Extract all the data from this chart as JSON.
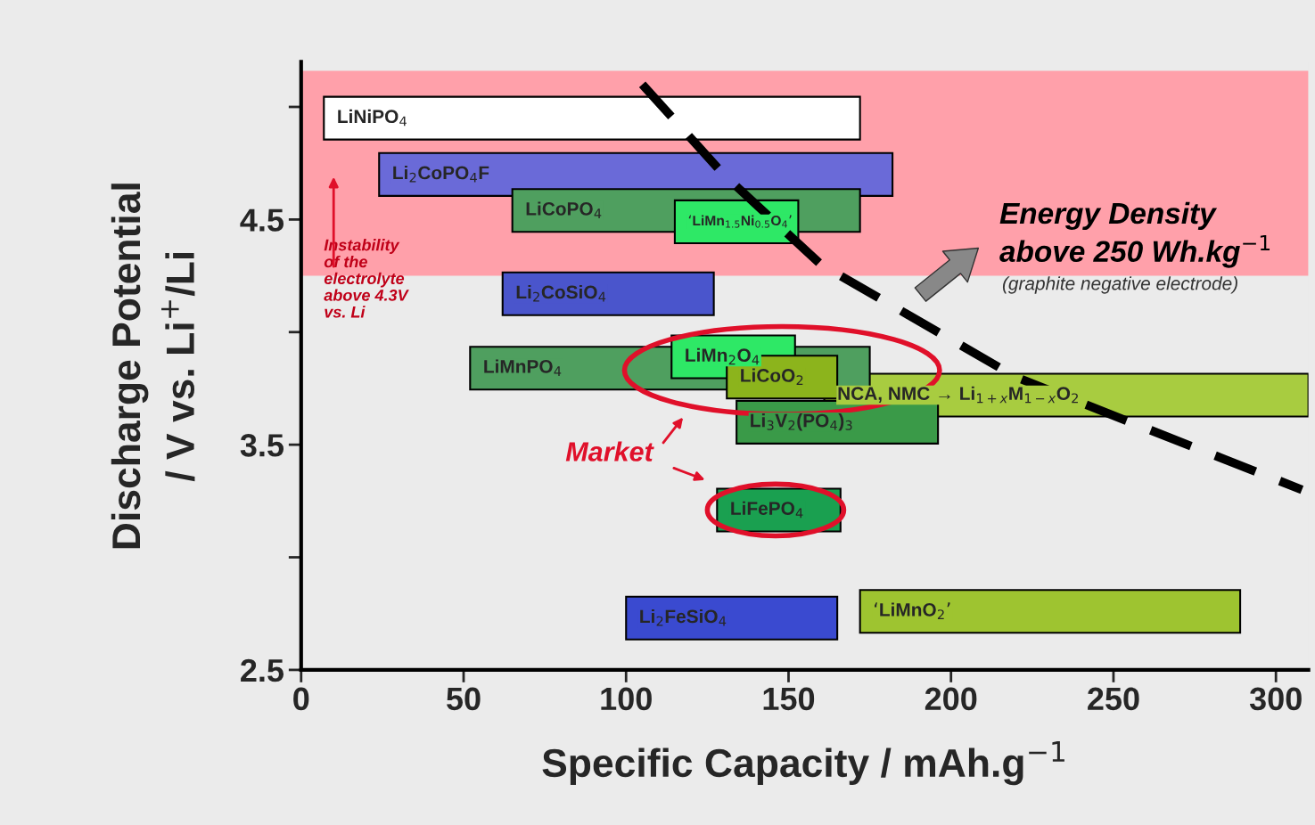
{
  "chart_data": {
    "type": "bar",
    "orientation": "horizontal",
    "xlabel": "Specific Capacity / mAh.g$^{−1}$",
    "ylabel": "Discharge Potential\n/ V vs. Li$^{+}$/Li",
    "series": [
      {
        "name": "LiNiPO$_{4}$",
        "x": [
          4.95
        ],
        "base": [
          7
        ],
        "values": [
          165
        ],
        "color": "#ffffff"
      },
      {
        "name": "Li$_{2}$CoPO$_{4}$F",
        "x": [
          4.7
        ],
        "base": [
          24
        ],
        "values": [
          158
        ],
        "color": "#6a6ad8"
      },
      {
        "name": "LiCoPO$_{4}$",
        "x": [
          4.54
        ],
        "base": [
          65
        ],
        "values": [
          107
        ],
        "color": "#4f9f5f"
      },
      {
        "name": "‘LiMn$_{1.5}$Ni$_{0.5}$O$_{4}$’",
        "x": [
          4.49
        ],
        "base": [
          115
        ],
        "values": [
          38
        ],
        "color": "#2ee866"
      },
      {
        "name": "Li$_{2}$CoSiO$_{4}$",
        "x": [
          4.17
        ],
        "base": [
          62
        ],
        "values": [
          65
        ],
        "color": "#4a55cc"
      },
      {
        "name": "LiMn$_{2}$O$_{4}$",
        "x": [
          3.89
        ],
        "base": [
          114
        ],
        "values": [
          38
        ],
        "color": "#2ee866"
      },
      {
        "name": "LiMnPO$_{4}$",
        "x": [
          3.84
        ],
        "base": [
          52
        ],
        "values": [
          123
        ],
        "color": "#4f9f5f"
      },
      {
        "name": "LiCoO$_{2}$",
        "x": [
          3.8
        ],
        "base": [
          131
        ],
        "values": [
          34
        ],
        "color": "#8cb41c"
      },
      {
        "name": "NCA, NMC → Li$_{1+x}$M$_{1−x}$O$_{2}$",
        "x": [
          3.72
        ],
        "base": [
          161
        ],
        "values": [
          149
        ],
        "color": "#a8cc40"
      },
      {
        "name": "Li$_{3}$V$_{2}$(PO$_{4}$)$_{3}$",
        "x": [
          3.6
        ],
        "base": [
          134
        ],
        "values": [
          62
        ],
        "color": "#3a9a48"
      },
      {
        "name": "LiFePO$_{4}$",
        "x": [
          3.21
        ],
        "base": [
          128
        ],
        "values": [
          38
        ],
        "color": "#1aa050"
      },
      {
        "name": "‘LiMnO$_{2}$’",
        "x": [
          2.76
        ],
        "base": [
          172
        ],
        "values": [
          117
        ],
        "color": "#9ec430"
      },
      {
        "name": "Li$_{2}$FeSiO$_{4}$",
        "x": [
          2.73
        ],
        "base": [
          100
        ],
        "values": [
          65
        ],
        "color": "#3a4ad0"
      },
      {
        "type": "line",
        "x": [
          5.1,
          4.7,
          4.3,
          3.8,
          3.3
        ],
        "values": [
          105,
          130,
          160,
          220,
          308
        ],
        "color": "#000000",
        "line_style": "dashed"
      }
    ],
    "bands": [
      {
        "axis": "y",
        "from": 4.25,
        "to": 5.16,
        "color": "#ffa0aa",
        "label": "Instability\nof the\nelectrolyte\nabove 4.3V\nvs. Li"
      }
    ],
    "annotations": [
      "Energy Density\nabove 250 Wh.kg$^{−1}$",
      "(graphite negative electrode)",
      "Market"
    ],
    "xlim": [
      0,
      310
    ],
    "xticks": [
      0,
      50,
      100,
      150,
      200,
      250,
      300
    ],
    "ylim": [
      2.5,
      5.2
    ],
    "yticks": [
      2.5,
      {
        "value": 3.0,
        "label": null
      },
      3.5,
      {
        "value": 4.0,
        "label": null
      },
      4.5,
      {
        "value": 5.0,
        "label": null
      }
    ],
    "grid": false,
    "legend": false
  }
}
